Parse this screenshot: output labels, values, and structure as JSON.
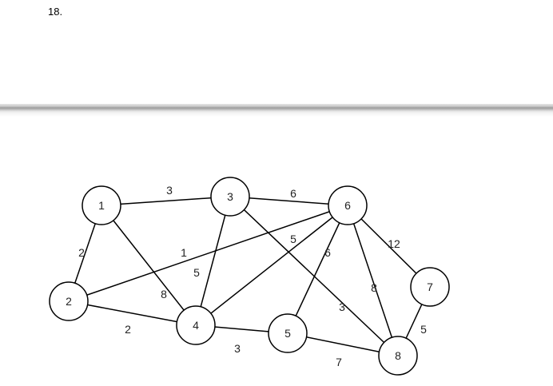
{
  "problem_number": "18.",
  "graph": {
    "nodes": [
      {
        "id": "1",
        "label": "1"
      },
      {
        "id": "2",
        "label": "2"
      },
      {
        "id": "3",
        "label": "3"
      },
      {
        "id": "4",
        "label": "4"
      },
      {
        "id": "5",
        "label": "5"
      },
      {
        "id": "6",
        "label": "6"
      },
      {
        "id": "7",
        "label": "7"
      },
      {
        "id": "8",
        "label": "8"
      }
    ],
    "edges": [
      {
        "from": "1",
        "to": "3",
        "weight": "3"
      },
      {
        "from": "1",
        "to": "2",
        "weight": "2"
      },
      {
        "from": "1",
        "to": "4",
        "weight": "8"
      },
      {
        "from": "3",
        "to": "6",
        "weight": "6"
      },
      {
        "from": "3",
        "to": "4",
        "weight": "5"
      },
      {
        "from": "3",
        "to": "8",
        "weight": "3"
      },
      {
        "from": "2",
        "to": "6",
        "weight": "1"
      },
      {
        "from": "2",
        "to": "4",
        "weight": "2"
      },
      {
        "from": "4",
        "to": "6",
        "weight": "5"
      },
      {
        "from": "4",
        "to": "5",
        "weight": "3"
      },
      {
        "from": "6",
        "to": "5",
        "weight": "6"
      },
      {
        "from": "6",
        "to": "8",
        "weight": "8"
      },
      {
        "from": "6",
        "to": "7",
        "weight": "12"
      },
      {
        "from": "5",
        "to": "8",
        "weight": "7"
      },
      {
        "from": "7",
        "to": "8",
        "weight": "5"
      }
    ]
  }
}
